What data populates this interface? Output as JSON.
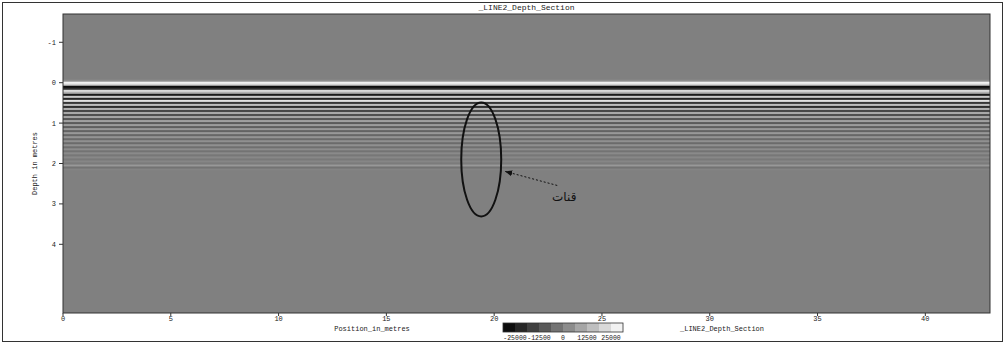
{
  "chart_data": {
    "type": "heatmap",
    "title": "_LINE2_Depth_Section",
    "x_label": "Position_in_metres",
    "y_label": "Depth in metres",
    "xlim": [
      0,
      43
    ],
    "xticks": [
      0,
      5,
      10,
      15,
      20,
      25,
      30,
      35,
      40
    ],
    "ylim": [
      -1.7,
      5.7
    ],
    "yticks": [
      -1,
      0,
      1,
      2,
      3,
      4
    ],
    "depths": [
      -0.1,
      -0.05,
      0.0,
      0.05,
      0.1,
      0.15,
      0.2,
      0.25,
      0.3,
      0.35,
      0.4,
      0.45,
      0.5,
      0.55,
      0.6,
      0.65,
      0.7,
      0.75,
      0.8,
      0.85,
      0.9,
      0.95,
      1.0,
      1.05,
      1.1,
      1.15,
      1.2,
      1.25,
      1.3,
      1.35,
      1.4,
      1.45,
      1.5,
      1.55,
      1.6,
      1.65,
      1.7,
      1.75,
      1.8,
      1.85,
      1.9,
      1.95,
      2.0,
      2.05,
      2.1,
      2.15,
      2.2
    ],
    "amplitudes": [
      0,
      3000,
      28000,
      20000,
      -28000,
      -20000,
      22000,
      12000,
      -25000,
      18000,
      -22000,
      24000,
      -18000,
      15000,
      -20000,
      12000,
      -14000,
      10000,
      -12000,
      9000,
      -10000,
      8000,
      -9000,
      7000,
      -8000,
      6000,
      -7000,
      6000,
      -6000,
      5000,
      -5000,
      4000,
      -5000,
      4000,
      -4000,
      3000,
      -3000,
      2500,
      -2000,
      2000,
      -1500,
      1500,
      -1000,
      6000,
      -3000,
      1000,
      0
    ],
    "colorbar": {
      "label": "_LINE2_Depth_Section",
      "range": [
        -31250,
        31250
      ],
      "ticks": [
        -25000,
        -12500,
        0,
        12500,
        25000
      ]
    },
    "annotations": [
      {
        "text": "قنات",
        "x": 19.4,
        "y": 1.9
      }
    ]
  }
}
